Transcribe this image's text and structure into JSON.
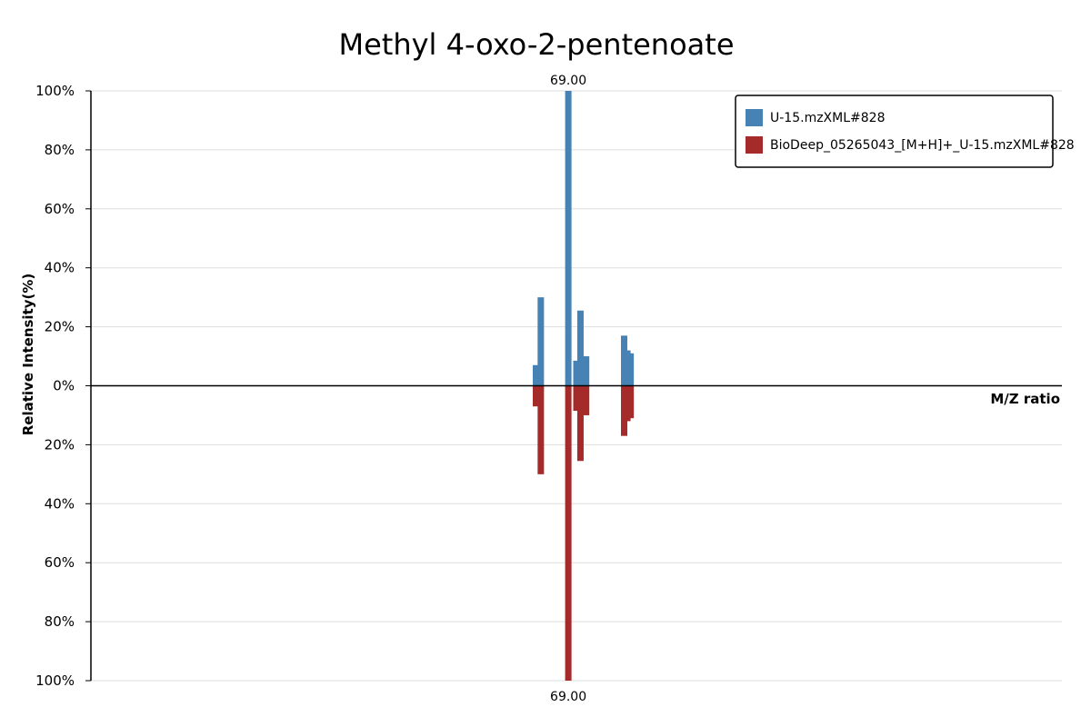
{
  "chart_data": {
    "type": "bar",
    "title": "Methyl 4-oxo-2-pentenoate",
    "xlabel": "M/Z ratio",
    "ylabel": "Relative Intensity(%)",
    "ylim": [
      -100,
      100
    ],
    "y_ticks": [
      "100%",
      "80%",
      "60%",
      "40%",
      "20%",
      "0%",
      "20%",
      "40%",
      "60%",
      "80%",
      "100%"
    ],
    "xlim": [
      10,
      130
    ],
    "grid": true,
    "legend_position": "top-right",
    "colors": {
      "series_a": "#4682b4",
      "series_b": "#a52a2a"
    },
    "series": [
      {
        "name": "U-15.mzXML#828",
        "direction": "up",
        "x": [
          65.0,
          65.6,
          69.0,
          70.0,
          70.5,
          71.2,
          75.9,
          76.3,
          76.7
        ],
        "values": [
          7,
          30,
          100,
          8.5,
          25.5,
          10,
          17,
          12,
          11
        ]
      },
      {
        "name": "BioDeep_05265043_[M+H]+_U-15.mzXML#828",
        "direction": "down",
        "x": [
          65.0,
          65.6,
          69.0,
          70.0,
          70.5,
          71.2,
          75.9,
          76.3,
          76.7
        ],
        "values": [
          7,
          30,
          100,
          8.5,
          25.5,
          10,
          17,
          12,
          11
        ]
      }
    ],
    "annotations": [
      {
        "text": "69.00",
        "x": 69.0,
        "y": 100
      },
      {
        "text": "69.00",
        "x": 69.0,
        "y": -100
      }
    ]
  }
}
